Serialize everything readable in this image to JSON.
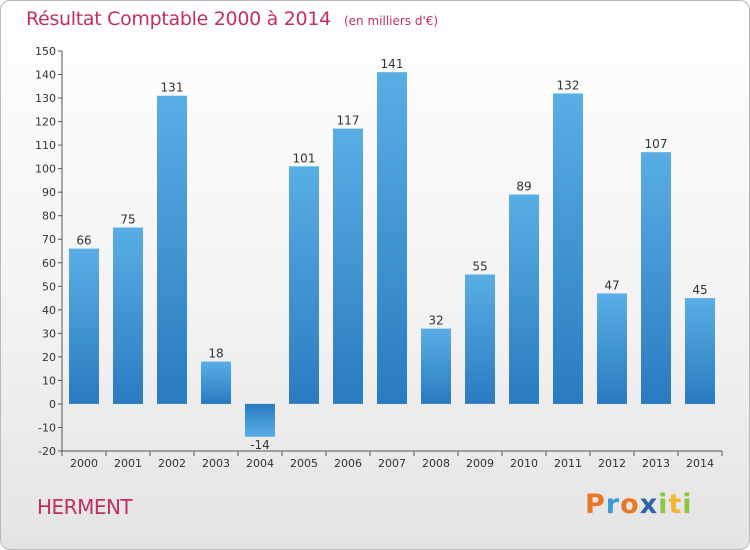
{
  "header": {
    "title": "Résultat Comptable 2000 à 2014",
    "unit": "(en milliers d'€)"
  },
  "footer": {
    "commune": "HERMENT",
    "logo_letters": [
      "P",
      "r",
      "o",
      "x",
      "i",
      "t",
      "i"
    ],
    "logo_colors": [
      "#e8772a",
      "#3a9bd8",
      "#e8772a",
      "#2f62a8",
      "#8dc63f",
      "#f2b632",
      "#8dc63f"
    ]
  },
  "chart_data": {
    "type": "bar",
    "title": "Résultat Comptable 2000 à 2014",
    "xlabel": "",
    "ylabel": "",
    "categories": [
      "2000",
      "2001",
      "2002",
      "2003",
      "2004",
      "2005",
      "2006",
      "2007",
      "2008",
      "2009",
      "2010",
      "2011",
      "2012",
      "2013",
      "2014"
    ],
    "values": [
      66,
      75,
      131,
      18,
      -14,
      101,
      117,
      141,
      32,
      55,
      89,
      132,
      47,
      107,
      45
    ],
    "data_labels": [
      "66",
      "75",
      "131",
      "18",
      "-14",
      "101",
      "117",
      "141",
      "32",
      "55",
      "89",
      "132",
      "47",
      "107",
      "45"
    ],
    "ylim": [
      -20,
      150
    ],
    "yticks": [
      -20,
      -10,
      0,
      10,
      20,
      30,
      40,
      50,
      60,
      70,
      80,
      90,
      100,
      110,
      120,
      130,
      140,
      150
    ],
    "ytick_labels": [
      "-20",
      "-10",
      "0",
      "10",
      "20",
      "30",
      "40",
      "50",
      "60",
      "70",
      "80",
      "90",
      "100",
      "110",
      "120",
      "130",
      "140",
      "150"
    ],
    "grid": false,
    "legend": "none",
    "bar_color": "#3d94d6"
  }
}
